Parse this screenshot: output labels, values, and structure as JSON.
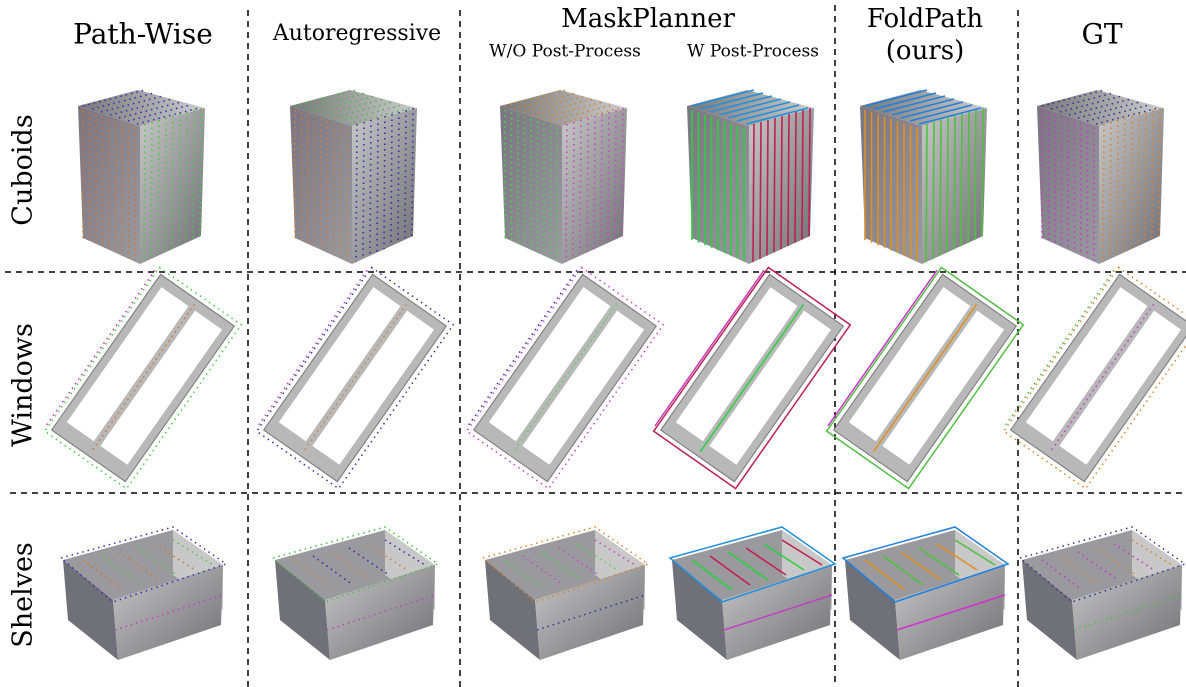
{
  "columns": [
    {
      "label": "Path-Wise"
    },
    {
      "label": "Autoregressive"
    },
    {
      "label": "MaskPlanner",
      "subcolumns": [
        "W/O Post-Process",
        "W Post-Process"
      ]
    },
    {
      "label": "FoldPath",
      "sublabel": "(ours)"
    },
    {
      "label": "GT"
    }
  ],
  "rows": [
    "Cuboids",
    "Windows",
    "Shelves"
  ]
}
